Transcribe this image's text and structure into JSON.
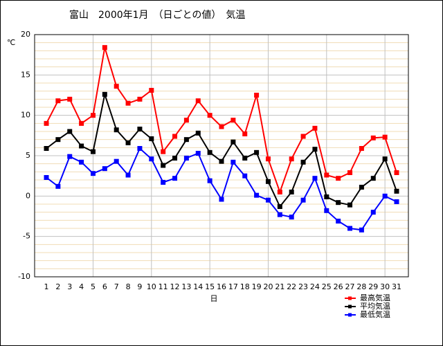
{
  "chart_data": {
    "type": "line",
    "title": "富山　2000年1月　（日ごとの値）　気温",
    "y_unit": "℃",
    "x_label": "日",
    "categories": [
      "1",
      "2",
      "3",
      "4",
      "5",
      "6",
      "7",
      "8",
      "9",
      "10",
      "11",
      "12",
      "13",
      "14",
      "15",
      "16",
      "17",
      "18",
      "19",
      "20",
      "21",
      "22",
      "23",
      "24",
      "25",
      "26",
      "27",
      "28",
      "29",
      "30",
      "31"
    ],
    "series": [
      {
        "name": "最高気温",
        "color": "#ff0000",
        "values": [
          9.0,
          11.8,
          12.0,
          9.0,
          10.0,
          18.4,
          13.6,
          11.5,
          12.0,
          13.1,
          5.5,
          7.4,
          9.4,
          11.8,
          10.0,
          8.6,
          9.4,
          7.7,
          12.5,
          4.6,
          0.5,
          4.6,
          7.4,
          8.4,
          2.6,
          2.2,
          2.9,
          5.9,
          7.2,
          7.3,
          2.9
        ]
      },
      {
        "name": "平均気温",
        "color": "#000000",
        "values": [
          5.9,
          7.0,
          8.0,
          6.2,
          5.5,
          12.6,
          8.2,
          6.6,
          8.3,
          7.1,
          3.8,
          4.7,
          7.0,
          7.8,
          5.4,
          4.3,
          6.7,
          4.7,
          5.4,
          1.8,
          -1.3,
          0.5,
          4.2,
          5.8,
          -0.1,
          -0.8,
          -1.1,
          1.1,
          2.2,
          4.6,
          0.6
        ]
      },
      {
        "name": "最低気温",
        "color": "#0000ff",
        "values": [
          2.3,
          1.2,
          4.9,
          4.2,
          2.8,
          3.4,
          4.3,
          2.6,
          5.9,
          4.6,
          1.7,
          2.2,
          4.7,
          5.3,
          1.9,
          -0.4,
          4.2,
          2.5,
          0.1,
          -0.5,
          -2.3,
          -2.6,
          -0.5,
          2.2,
          -1.8,
          -3.1,
          -4.0,
          -4.2,
          -2.0,
          0.0,
          -0.7
        ]
      }
    ],
    "ylim": [
      -10,
      20
    ],
    "yticks": [
      -10,
      -5,
      0,
      5,
      10,
      15,
      20
    ],
    "grid": true,
    "minor_grid": true,
    "legend": "bottom-right"
  }
}
